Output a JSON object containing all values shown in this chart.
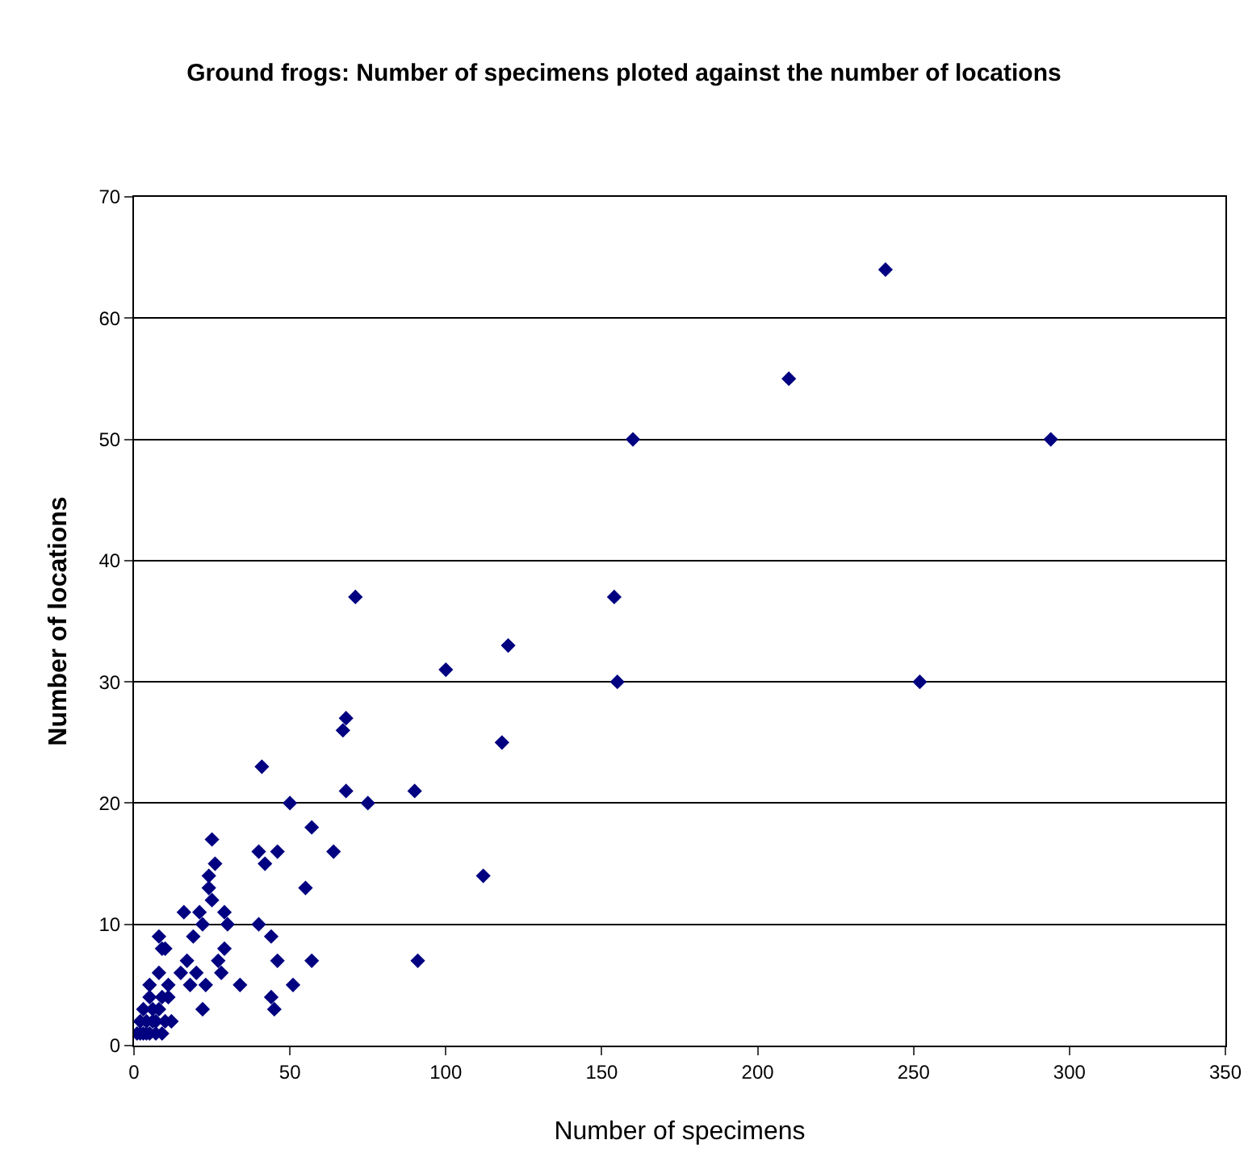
{
  "chart_data": {
    "type": "scatter",
    "title": "Ground frogs: Number of specimens ploted against the number of locations",
    "xlabel": "Number of specimens",
    "ylabel": "Number of locations",
    "x": [
      241,
      210,
      160,
      294,
      71,
      154,
      120,
      100,
      155,
      252,
      68,
      67,
      118,
      41,
      68,
      90,
      50,
      75,
      57,
      25,
      40,
      46,
      64,
      42,
      26,
      24,
      112,
      24,
      55,
      25,
      16,
      21,
      29,
      22,
      30,
      40,
      19,
      8,
      44,
      9,
      29,
      10,
      57,
      17,
      27,
      91,
      46,
      28,
      15,
      20,
      8,
      18,
      23,
      34,
      51,
      5,
      44,
      9,
      5,
      11,
      3,
      8,
      22,
      45,
      4,
      7,
      10,
      12,
      2,
      1,
      3,
      5,
      7,
      9,
      6,
      4,
      2,
      6,
      11
    ],
    "values": [
      64,
      55,
      50,
      50,
      37,
      37,
      33,
      31,
      30,
      30,
      27,
      26,
      25,
      23,
      21,
      21,
      20,
      20,
      18,
      17,
      16,
      16,
      16,
      15,
      15,
      14,
      14,
      13,
      13,
      12,
      11,
      11,
      11,
      10,
      10,
      10,
      9,
      9,
      9,
      8,
      8,
      8,
      7,
      7,
      7,
      7,
      7,
      6,
      6,
      6,
      6,
      5,
      5,
      5,
      5,
      5,
      4,
      4,
      4,
      4,
      3,
      3,
      3,
      3,
      2,
      2,
      2,
      2,
      2,
      1,
      1,
      1,
      1,
      1,
      2,
      1,
      1,
      3,
      5
    ],
    "color": "#000080",
    "marker": "diamond",
    "xlim": [
      0,
      350
    ],
    "xticks": [
      0,
      50,
      100,
      150,
      200,
      250,
      300,
      350
    ],
    "ylim": [
      0,
      70
    ],
    "yticks": [
      0,
      10,
      20,
      30,
      40,
      50,
      60,
      70
    ],
    "grid": "y"
  }
}
